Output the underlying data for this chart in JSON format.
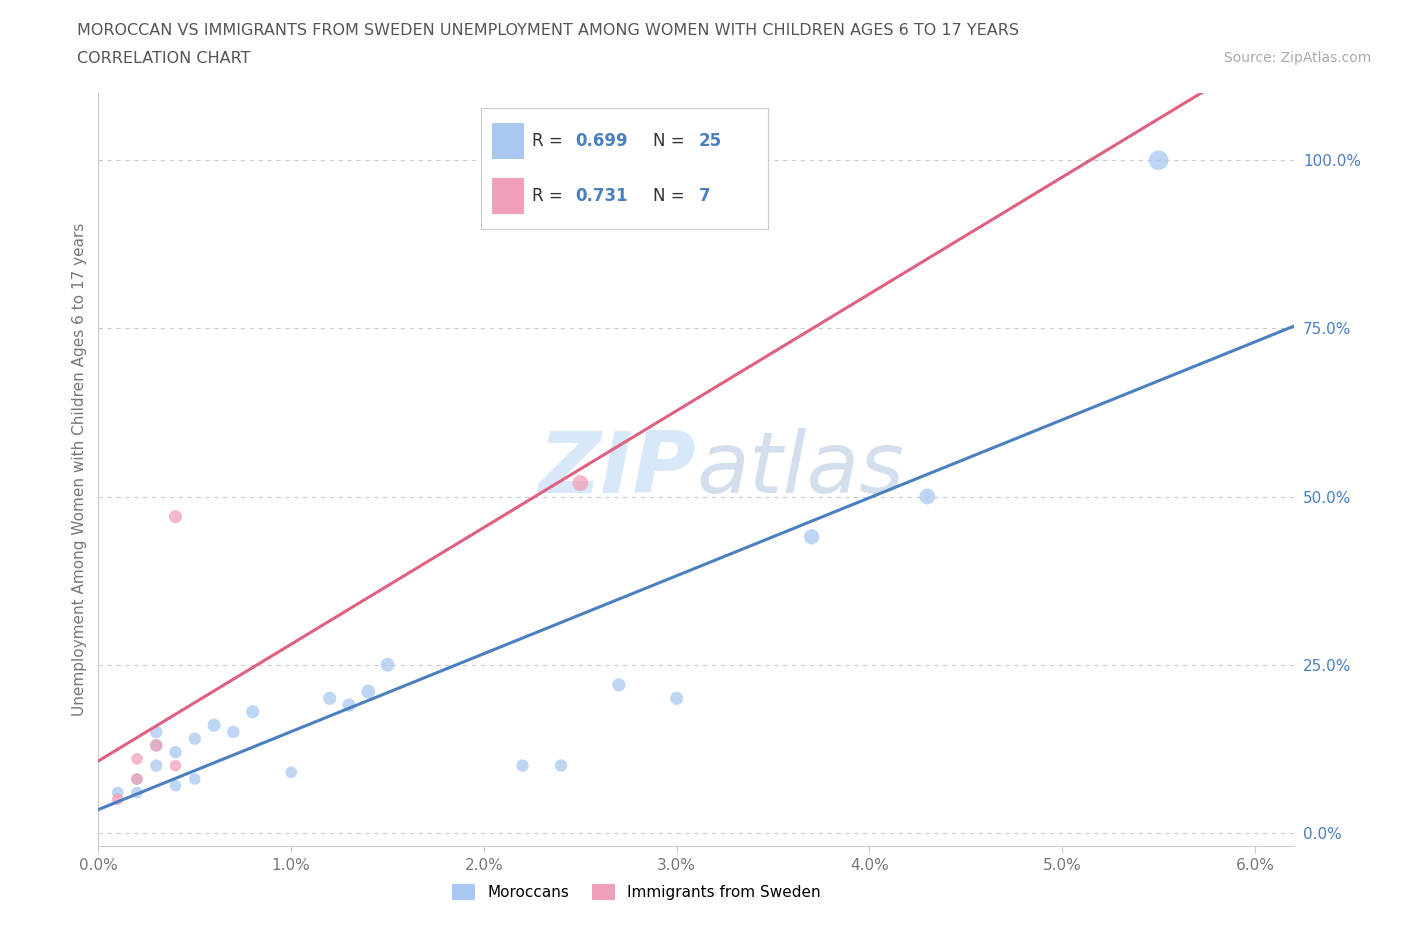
{
  "title_line1": "MOROCCAN VS IMMIGRANTS FROM SWEDEN UNEMPLOYMENT AMONG WOMEN WITH CHILDREN AGES 6 TO 17 YEARS",
  "title_line2": "CORRELATION CHART",
  "source_text": "Source: ZipAtlas.com",
  "ylabel": "Unemployment Among Women with Children Ages 6 to 17 years",
  "xlim": [
    0.0,
    0.062
  ],
  "ylim": [
    -0.02,
    1.1
  ],
  "xtick_labels": [
    "0.0%",
    "1.0%",
    "2.0%",
    "3.0%",
    "4.0%",
    "5.0%",
    "6.0%"
  ],
  "xtick_values": [
    0.0,
    0.01,
    0.02,
    0.03,
    0.04,
    0.05,
    0.06
  ],
  "ytick_labels": [
    "0.0%",
    "25.0%",
    "50.0%",
    "75.0%",
    "100.0%"
  ],
  "ytick_values": [
    0.0,
    0.25,
    0.5,
    0.75,
    1.0
  ],
  "blue_color": "#a8c8f0",
  "pink_color": "#f0a0b8",
  "blue_line_color": "#4a7fc0",
  "pink_line_color": "#e06080",
  "background_color": "#ffffff",
  "grid_color": "#cccccc",
  "watermark_color": "#d8e8f8",
  "watermark_text": "ZIPatlas",
  "r_blue": 0.699,
  "n_blue": 25,
  "r_pink": 0.731,
  "n_pink": 7,
  "blue_scatter_x": [
    0.001,
    0.002,
    0.002,
    0.003,
    0.003,
    0.003,
    0.004,
    0.004,
    0.005,
    0.005,
    0.006,
    0.007,
    0.008,
    0.01,
    0.012,
    0.013,
    0.014,
    0.015,
    0.022,
    0.024,
    0.027,
    0.03,
    0.037,
    0.043,
    0.055
  ],
  "blue_scatter_y": [
    0.06,
    0.06,
    0.08,
    0.1,
    0.13,
    0.15,
    0.07,
    0.12,
    0.08,
    0.14,
    0.16,
    0.15,
    0.18,
    0.09,
    0.2,
    0.19,
    0.21,
    0.25,
    0.1,
    0.1,
    0.22,
    0.2,
    0.44,
    0.5,
    1.0
  ],
  "blue_scatter_sizes": [
    70,
    70,
    70,
    80,
    80,
    80,
    70,
    80,
    70,
    80,
    90,
    80,
    90,
    70,
    90,
    90,
    100,
    100,
    80,
    80,
    90,
    90,
    120,
    130,
    200
  ],
  "pink_scatter_x": [
    0.001,
    0.002,
    0.002,
    0.003,
    0.004,
    0.004,
    0.025
  ],
  "pink_scatter_y": [
    0.05,
    0.08,
    0.11,
    0.13,
    0.1,
    0.47,
    0.52
  ],
  "pink_scatter_sizes": [
    70,
    70,
    70,
    80,
    70,
    90,
    130
  ],
  "legend_blue_label": "Moroccans",
  "legend_pink_label": "Immigrants from Sweden"
}
